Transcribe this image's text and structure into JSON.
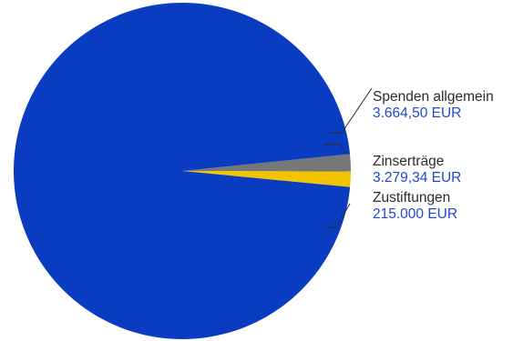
{
  "chart_data": {
    "type": "pie",
    "slices": [
      {
        "label": "Spenden allgemein",
        "value_label": "3.664,50 EUR",
        "value": 3664.5,
        "color": "#777777"
      },
      {
        "label": "Zinserträge",
        "value_label": "3.279,34 EUR",
        "value": 3279.34,
        "color": "#f2c500"
      },
      {
        "label": "Zustiftungen",
        "value_label": "215.000 EUR",
        "value": 215000,
        "color": "#0a3cc2"
      }
    ],
    "legend": "none",
    "label_placement": "outside-right-with-leader-lines"
  }
}
